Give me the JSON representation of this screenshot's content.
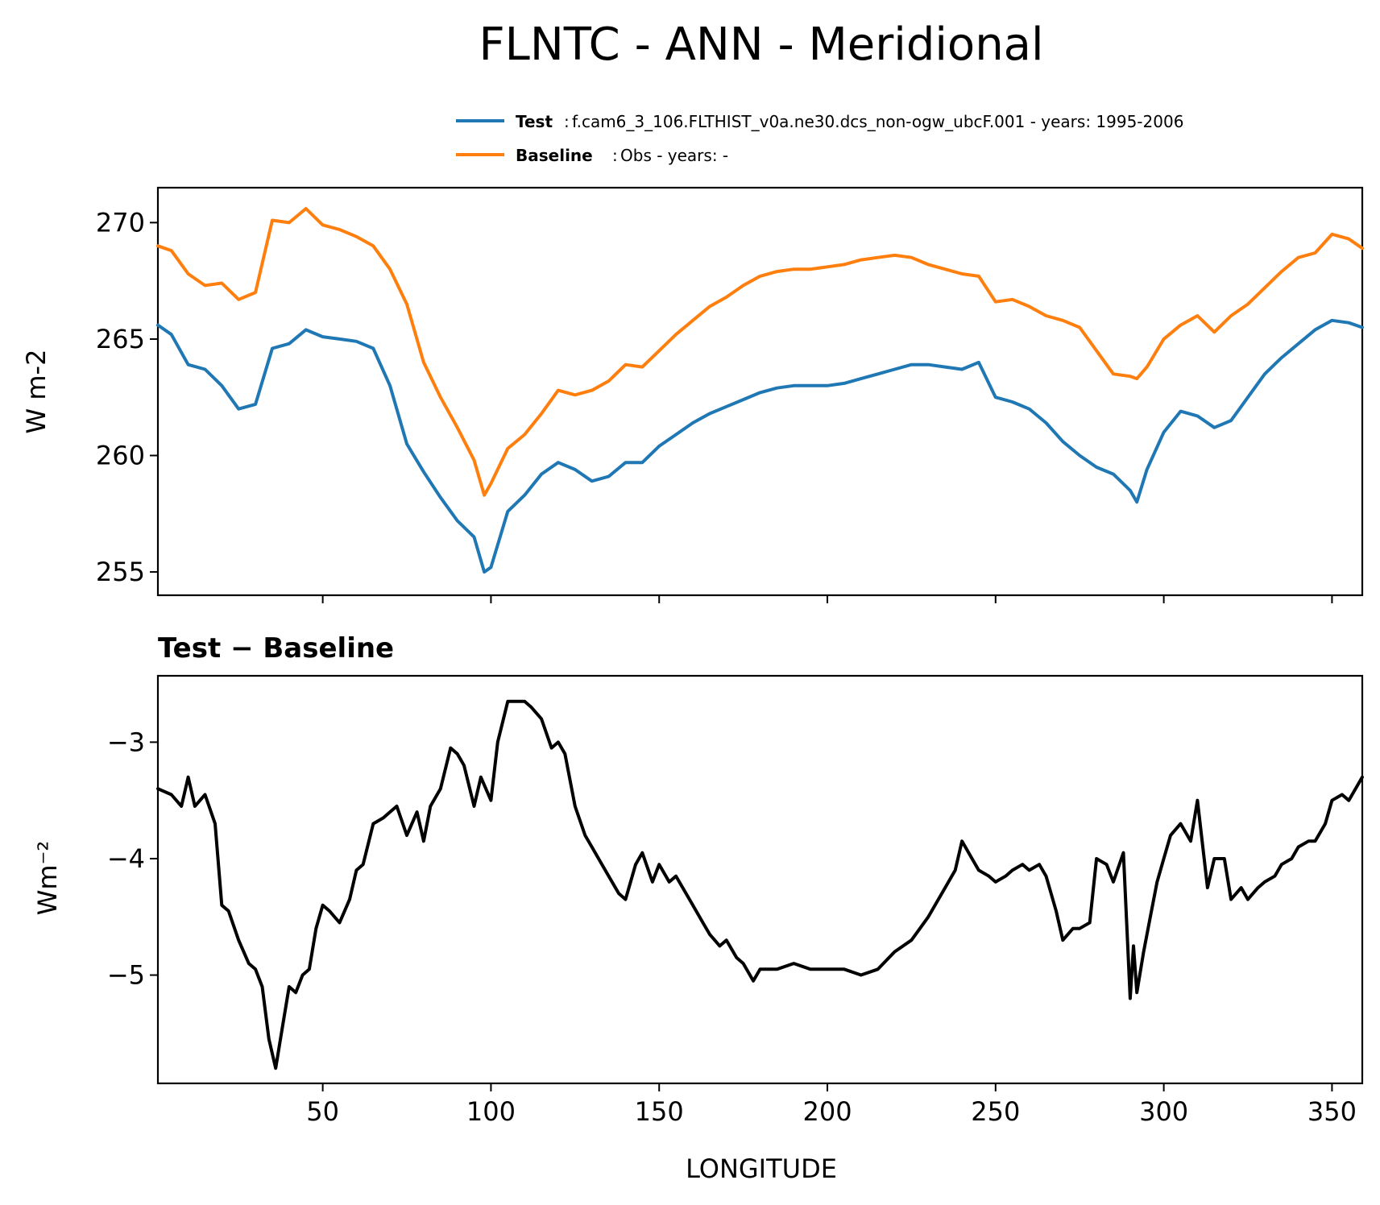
{
  "chart_data": [
    {
      "type": "line",
      "title": "FLNTC - ANN - Meridional",
      "xlabel": "",
      "ylabel": "W m-2",
      "xlim": [
        1,
        359
      ],
      "ylim": [
        254,
        271.5
      ],
      "yticks": [
        255,
        260,
        265,
        270
      ],
      "xticks": [
        50,
        100,
        150,
        200,
        250,
        300,
        350
      ],
      "grid": false,
      "legend_position": "top-right",
      "x": [
        1,
        5,
        10,
        15,
        20,
        25,
        30,
        35,
        40,
        45,
        50,
        55,
        60,
        65,
        70,
        75,
        80,
        85,
        90,
        95,
        98,
        100,
        105,
        110,
        115,
        120,
        125,
        130,
        135,
        140,
        145,
        150,
        155,
        160,
        165,
        170,
        175,
        180,
        185,
        190,
        195,
        200,
        205,
        210,
        215,
        220,
        225,
        230,
        235,
        240,
        245,
        250,
        255,
        260,
        265,
        270,
        275,
        280,
        285,
        290,
        292,
        295,
        300,
        305,
        310,
        315,
        320,
        325,
        330,
        335,
        340,
        345,
        350,
        355,
        359
      ],
      "series": [
        {
          "name": "Test",
          "label_detail": "f.cam6_3_106.FLTHIST_v0a.ne30.dcs_non-ogw_ubcF.001 - years: 1995-2006",
          "color": "#1f77b4",
          "values": [
            265.6,
            265.2,
            263.9,
            263.7,
            263.0,
            262.0,
            262.2,
            264.6,
            264.8,
            265.4,
            265.1,
            265.0,
            264.9,
            264.6,
            263.0,
            260.5,
            259.3,
            258.2,
            257.2,
            256.5,
            255.0,
            255.2,
            257.6,
            258.3,
            259.2,
            259.7,
            259.4,
            258.9,
            259.1,
            259.7,
            259.7,
            260.4,
            260.9,
            261.4,
            261.8,
            262.1,
            262.4,
            262.7,
            262.9,
            263.0,
            263.0,
            263.0,
            263.1,
            263.3,
            263.5,
            263.7,
            263.9,
            263.9,
            263.8,
            263.7,
            264.0,
            262.5,
            262.3,
            262.0,
            261.4,
            260.6,
            260.0,
            259.5,
            259.2,
            258.5,
            258.0,
            259.4,
            261.0,
            261.9,
            261.7,
            261.2,
            261.5,
            262.5,
            263.5,
            264.2,
            264.8,
            265.4,
            265.8,
            265.7,
            265.5
          ]
        },
        {
          "name": "Baseline",
          "label_detail": "Obs - years: -",
          "color": "#ff7f0e",
          "values": [
            269.0,
            268.8,
            267.8,
            267.3,
            267.4,
            266.7,
            267.0,
            270.1,
            270.0,
            270.6,
            269.9,
            269.7,
            269.4,
            269.0,
            268.0,
            266.5,
            264.0,
            262.5,
            261.2,
            259.8,
            258.3,
            258.8,
            260.3,
            260.9,
            261.8,
            262.8,
            262.6,
            262.8,
            263.2,
            263.9,
            263.8,
            264.5,
            265.2,
            265.8,
            266.4,
            266.8,
            267.3,
            267.7,
            267.9,
            268.0,
            268.0,
            268.1,
            268.2,
            268.4,
            268.5,
            268.6,
            268.5,
            268.2,
            268.0,
            267.8,
            267.7,
            266.6,
            266.7,
            266.4,
            266.0,
            265.8,
            265.5,
            264.5,
            263.5,
            263.4,
            263.3,
            263.8,
            265.0,
            265.6,
            266.0,
            265.3,
            266.0,
            266.5,
            267.2,
            267.9,
            268.5,
            268.7,
            269.5,
            269.3,
            268.9
          ]
        }
      ]
    },
    {
      "type": "line",
      "title": "Test − Baseline",
      "xlabel": "LONGITUDE",
      "ylabel": "Wm⁻²",
      "xlim": [
        1,
        359
      ],
      "ylim": [
        -5.93,
        -2.43
      ],
      "yticks": [
        -3,
        -4,
        -5
      ],
      "yticklabels": [
        "−3",
        "−4",
        "−5"
      ],
      "xticks": [
        50,
        100,
        150,
        200,
        250,
        300,
        350
      ],
      "xticklabels": [
        "50",
        "100",
        "150",
        "200",
        "250",
        "300",
        "350"
      ],
      "grid": false,
      "x": [
        1,
        5,
        8,
        10,
        12,
        15,
        18,
        20,
        22,
        25,
        28,
        30,
        32,
        34,
        36,
        38,
        40,
        42,
        44,
        46,
        48,
        50,
        52,
        55,
        58,
        60,
        62,
        65,
        68,
        70,
        72,
        75,
        78,
        80,
        82,
        85,
        88,
        90,
        92,
        95,
        97,
        100,
        102,
        105,
        107,
        110,
        112,
        115,
        118,
        120,
        122,
        125,
        128,
        130,
        133,
        135,
        138,
        140,
        143,
        145,
        148,
        150,
        153,
        155,
        158,
        160,
        163,
        165,
        168,
        170,
        173,
        175,
        178,
        180,
        185,
        190,
        195,
        200,
        205,
        210,
        215,
        220,
        225,
        230,
        235,
        238,
        240,
        243,
        245,
        248,
        250,
        253,
        255,
        258,
        260,
        263,
        265,
        268,
        270,
        273,
        275,
        278,
        280,
        283,
        285,
        288,
        290,
        291,
        292,
        294,
        296,
        298,
        300,
        302,
        305,
        308,
        310,
        313,
        315,
        318,
        320,
        323,
        325,
        328,
        330,
        333,
        335,
        338,
        340,
        343,
        345,
        348,
        350,
        353,
        355,
        359
      ],
      "series": [
        {
          "name": "",
          "color": "#000000",
          "values": [
            -3.4,
            -3.45,
            -3.55,
            -3.3,
            -3.55,
            -3.45,
            -3.7,
            -4.4,
            -4.45,
            -4.7,
            -4.9,
            -4.95,
            -5.1,
            -5.55,
            -5.8,
            -5.45,
            -5.1,
            -5.15,
            -5.0,
            -4.95,
            -4.6,
            -4.4,
            -4.45,
            -4.55,
            -4.35,
            -4.1,
            -4.05,
            -3.7,
            -3.65,
            -3.6,
            -3.55,
            -3.8,
            -3.6,
            -3.85,
            -3.55,
            -3.4,
            -3.05,
            -3.1,
            -3.2,
            -3.55,
            -3.3,
            -3.5,
            -3.0,
            -2.65,
            -2.65,
            -2.65,
            -2.7,
            -2.8,
            -3.05,
            -3.0,
            -3.1,
            -3.55,
            -3.8,
            -3.9,
            -4.05,
            -4.15,
            -4.3,
            -4.35,
            -4.05,
            -3.95,
            -4.2,
            -4.05,
            -4.2,
            -4.15,
            -4.3,
            -4.4,
            -4.55,
            -4.65,
            -4.75,
            -4.7,
            -4.85,
            -4.9,
            -5.05,
            -4.95,
            -4.95,
            -4.9,
            -4.95,
            -4.95,
            -4.95,
            -5.0,
            -4.95,
            -4.8,
            -4.7,
            -4.5,
            -4.25,
            -4.1,
            -3.85,
            -4.0,
            -4.1,
            -4.15,
            -4.2,
            -4.15,
            -4.1,
            -4.05,
            -4.1,
            -4.05,
            -4.15,
            -4.45,
            -4.7,
            -4.6,
            -4.6,
            -4.55,
            -4.0,
            -4.05,
            -4.2,
            -3.95,
            -5.2,
            -4.75,
            -5.15,
            -4.8,
            -4.5,
            -4.2,
            -4.0,
            -3.8,
            -3.7,
            -3.85,
            -3.5,
            -4.25,
            -4.0,
            -4.0,
            -4.35,
            -4.25,
            -4.35,
            -4.25,
            -4.2,
            -4.15,
            -4.05,
            -4.0,
            -3.9,
            -3.85,
            -3.85,
            -3.7,
            -3.5,
            -3.45,
            -3.5,
            -3.3
          ]
        }
      ]
    }
  ]
}
